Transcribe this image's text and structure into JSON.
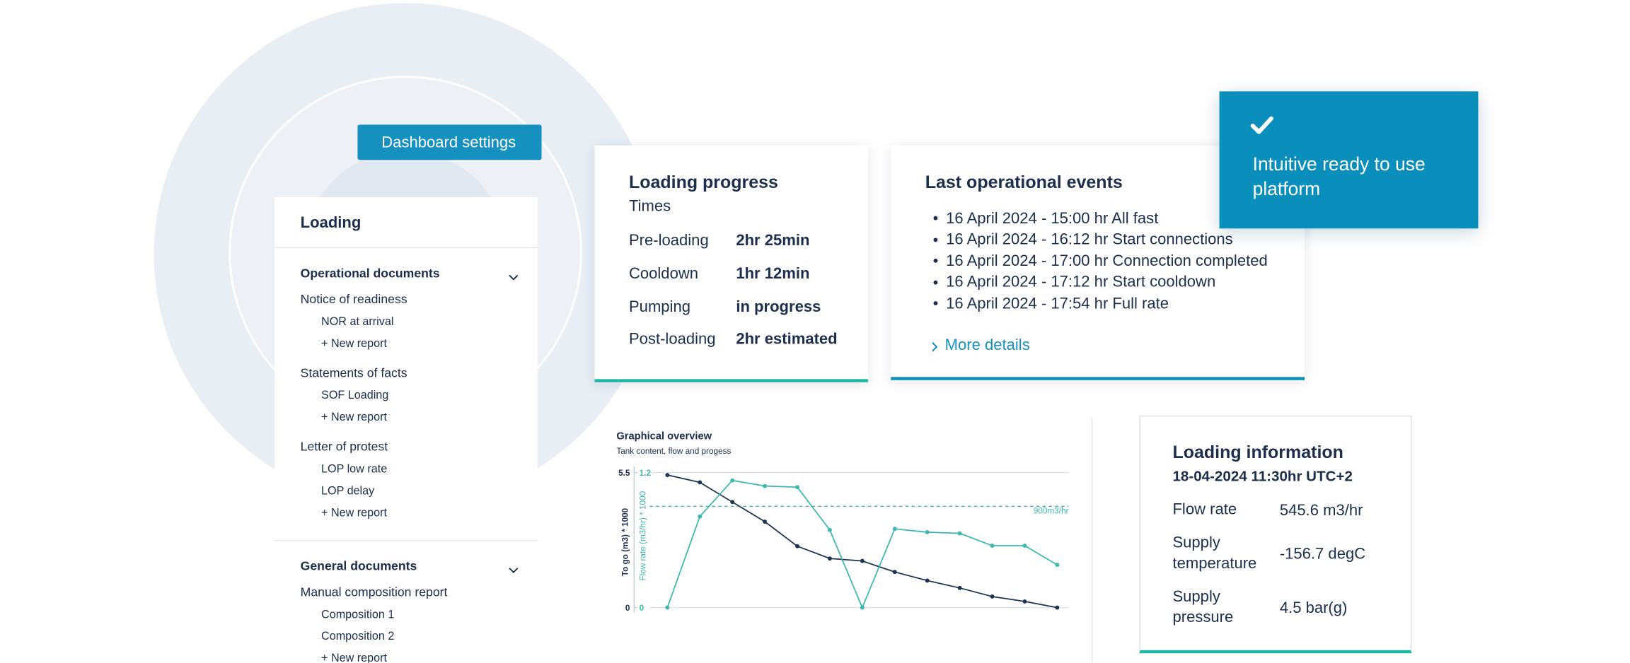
{
  "dashboard_button": "Dashboard settings",
  "sidebar": {
    "title": "Loading",
    "sections": [
      {
        "title": "Operational documents",
        "groups": [
          {
            "title": "Notice of readiness",
            "items": [
              "NOR at arrival",
              "+ New report"
            ]
          },
          {
            "title": "Statements of facts",
            "items": [
              "SOF Loading",
              "+ New report"
            ]
          },
          {
            "title": "Letter of protest",
            "items": [
              "LOP low rate",
              "LOP delay",
              "+ New report"
            ]
          }
        ]
      },
      {
        "title": "General documents",
        "groups": [
          {
            "title": "Manual composition report",
            "items": [
              "Composition 1",
              "Composition 2",
              "+ New report"
            ]
          }
        ]
      }
    ]
  },
  "loading_progress": {
    "title": "Loading progress",
    "subtitle": "Times",
    "rows": [
      [
        "Pre-loading",
        "2hr 25min"
      ],
      [
        "Cooldown",
        "1hr 12min"
      ],
      [
        "Pumping",
        "in progress"
      ],
      [
        "Post-loading",
        "2hr estimated"
      ]
    ]
  },
  "events": {
    "title": "Last operational events",
    "items": [
      "16 April 2024 - 15:00 hr All fast",
      "16 April 2024 - 16:12 hr Start connections",
      "16 April 2024 - 17:00 hr Connection completed",
      "16 April 2024 - 17:12 hr Start cooldown",
      "16 April 2024 - 17:54 hr Full rate"
    ],
    "link": "More details"
  },
  "banner": {
    "text": "Intuitive ready to use platform"
  },
  "loading_information": {
    "title": "Loading information",
    "subtitle": "18-04-2024 11:30hr UTC+2",
    "rows": [
      [
        "Flow rate",
        "545.6 m3/hr"
      ],
      [
        "Supply temperature",
        "-156.7 degC"
      ],
      [
        "Supply pressure",
        "4.5 bar(g)"
      ]
    ]
  },
  "chart_data": {
    "type": "line",
    "title": "Graphical overview",
    "subtitle": "Tank content, flow and progess",
    "ylabel": "To go (m3) * 1000",
    "y2label": "Flow rate (m3/hr) * 1000",
    "categories": [
      null,
      null,
      null,
      null,
      null,
      null,
      null,
      null,
      null,
      null,
      null,
      null,
      null
    ],
    "ylim": [
      0,
      5.5
    ],
    "yticks": [
      0,
      5.5
    ],
    "y2lim": [
      0,
      1.2
    ],
    "y2ticks": [
      0,
      1.2
    ],
    "grid": true,
    "reference": {
      "value": 0.9,
      "label": "900m3/hr",
      "axis": "y2",
      "color": "#3cb8b0"
    },
    "series": [
      {
        "color": "#1d3452",
        "values": [
          5.4,
          5.1,
          4.3,
          3.5,
          2.5,
          2.0,
          1.9,
          1.45,
          1.1,
          0.8,
          0.45,
          0.25,
          0
        ]
      },
      {
        "color": "#3cb8b0",
        "axis": "y2",
        "values": [
          0,
          0.81,
          1.13,
          1.08,
          1.07,
          0.69,
          0,
          0.7,
          0.67,
          0.66,
          0.55,
          0.55,
          0.38
        ]
      }
    ]
  }
}
